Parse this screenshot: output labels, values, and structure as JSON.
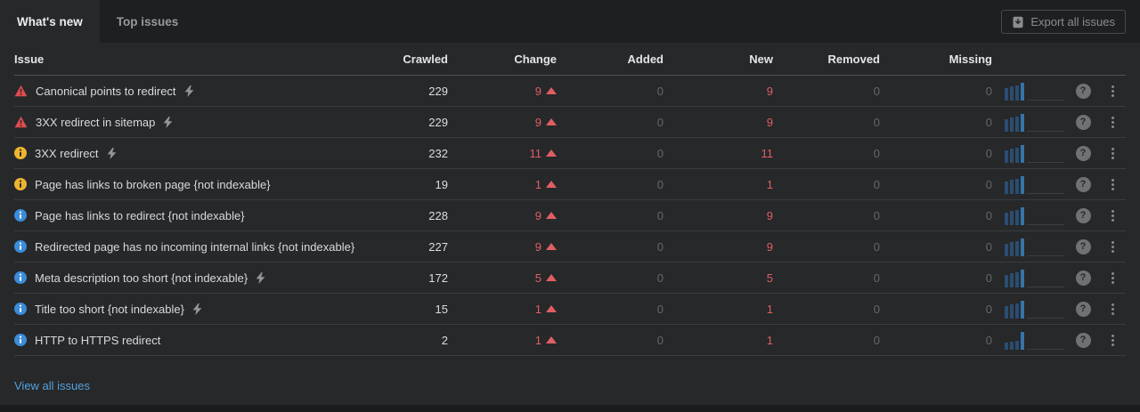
{
  "tabs": [
    {
      "label": "What's new",
      "active": true
    },
    {
      "label": "Top issues",
      "active": false
    }
  ],
  "export_button": {
    "label": "Export all issues"
  },
  "columns": [
    "Issue",
    "Crawled",
    "Change",
    "Added",
    "New",
    "Removed",
    "Missing"
  ],
  "rows": [
    {
      "severity": "error",
      "title": "Canonical points to redirect",
      "fixable": true,
      "crawled": "229",
      "change": "9",
      "trend": "up",
      "added": "0",
      "new": "9",
      "removed": "0",
      "missing": "0",
      "spark": [
        70,
        78,
        86,
        100
      ]
    },
    {
      "severity": "error",
      "title": "3XX redirect in sitemap",
      "fixable": true,
      "crawled": "229",
      "change": "9",
      "trend": "up",
      "added": "0",
      "new": "9",
      "removed": "0",
      "missing": "0",
      "spark": [
        70,
        78,
        86,
        100
      ]
    },
    {
      "severity": "warning",
      "title": "3XX redirect",
      "fixable": true,
      "crawled": "232",
      "change": "11",
      "trend": "up",
      "added": "0",
      "new": "11",
      "removed": "0",
      "missing": "0",
      "spark": [
        70,
        78,
        86,
        100
      ]
    },
    {
      "severity": "warning",
      "title": "Page has links to broken page {not indexable}",
      "fixable": false,
      "crawled": "19",
      "change": "1",
      "trend": "up",
      "added": "0",
      "new": "1",
      "removed": "0",
      "missing": "0",
      "spark": [
        70,
        78,
        86,
        100
      ]
    },
    {
      "severity": "info",
      "title": "Page has links to redirect {not indexable}",
      "fixable": false,
      "crawled": "228",
      "change": "9",
      "trend": "up",
      "added": "0",
      "new": "9",
      "removed": "0",
      "missing": "0",
      "spark": [
        70,
        78,
        86,
        100
      ]
    },
    {
      "severity": "info",
      "title": "Redirected page has no incoming internal links {not indexable}",
      "fixable": false,
      "crawled": "227",
      "change": "9",
      "trend": "up",
      "added": "0",
      "new": "9",
      "removed": "0",
      "missing": "0",
      "spark": [
        70,
        78,
        86,
        100
      ]
    },
    {
      "severity": "info",
      "title": "Meta description too short {not indexable}",
      "fixable": true,
      "crawled": "172",
      "change": "5",
      "trend": "up",
      "added": "0",
      "new": "5",
      "removed": "0",
      "missing": "0",
      "spark": [
        70,
        78,
        86,
        100
      ]
    },
    {
      "severity": "info",
      "title": "Title too short {not indexable}",
      "fixable": true,
      "crawled": "15",
      "change": "1",
      "trend": "up",
      "added": "0",
      "new": "1",
      "removed": "0",
      "missing": "0",
      "spark": [
        70,
        78,
        86,
        100
      ]
    },
    {
      "severity": "info",
      "title": "HTTP to HTTPS redirect",
      "fixable": false,
      "crawled": "2",
      "change": "1",
      "trend": "up",
      "added": "0",
      "new": "1",
      "removed": "0",
      "missing": "0",
      "spark": [
        38,
        44,
        52,
        100
      ]
    }
  ],
  "footer": {
    "view_all_label": "View all issues"
  },
  "colors": {
    "background": "#26282a",
    "tabbar_background": "#1d1f21",
    "row_divider": "#3a3d3f",
    "error_red": "#de4b50",
    "warning_yellow": "#edb52f",
    "info_blue": "#3b8cd9",
    "change_red": "#e05e63",
    "muted_gray": "#65686c",
    "link_blue": "#55a0dd",
    "spark_bar": "#2b4d70",
    "spark_bar_bright": "#3674a8"
  }
}
